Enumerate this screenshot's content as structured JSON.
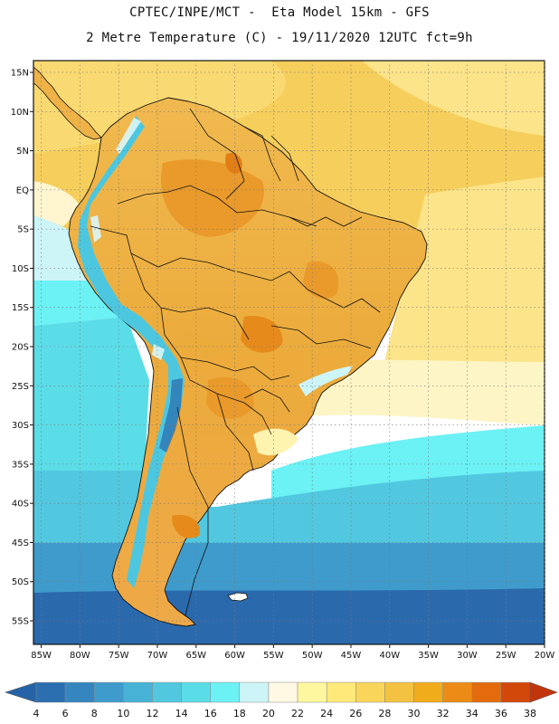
{
  "header": {
    "line1": "CPTEC/INPE/MCT -  Eta Model 15km - GFS",
    "line2": "2 Metre Temperature (C) - 19/11/2020 12UTC fct=9h"
  },
  "map": {
    "lat_labels": [
      "15N",
      "10N",
      "5N",
      "EQ",
      "5S",
      "10S",
      "15S",
      "20S",
      "25S",
      "30S",
      "35S",
      "40S",
      "45S",
      "50S",
      "55S"
    ],
    "lat_values": [
      15,
      10,
      5,
      0,
      -5,
      -10,
      -15,
      -20,
      -25,
      -30,
      -35,
      -40,
      -45,
      -50,
      -55
    ],
    "lon_labels": [
      "85W",
      "80W",
      "75W",
      "70W",
      "65W",
      "60W",
      "55W",
      "50W",
      "45W",
      "40W",
      "35W",
      "30W",
      "25W",
      "20W"
    ],
    "lon_values": [
      -85,
      -80,
      -75,
      -70,
      -65,
      -60,
      -55,
      -50,
      -45,
      -40,
      -35,
      -30,
      -25,
      -20
    ],
    "lat_range": [
      -58,
      16.5
    ],
    "lon_range": [
      -86,
      -20
    ]
  },
  "colorbar": {
    "labels": [
      "4",
      "6",
      "8",
      "10",
      "12",
      "14",
      "16",
      "18",
      "20",
      "22",
      "24",
      "26",
      "28",
      "30",
      "32",
      "34",
      "36",
      "38"
    ],
    "colors": [
      "#2b6fb0",
      "#3586bf",
      "#3f9bcc",
      "#47b2d6",
      "#52c8e0",
      "#5bdde8",
      "#6cf1f4",
      "#cdf5f8",
      "#fff8e3",
      "#fff7a0",
      "#ffe97a",
      "#f9d65a",
      "#f3c240",
      "#f1ac1c",
      "#ec8c16",
      "#e36b0c",
      "#d2470a"
    ],
    "under_color": "#2563a6",
    "over_color": "#c2350c"
  },
  "colors": {
    "deep_ocean": "#2b69ad",
    "cold_ocean": "#3e9bcd",
    "cool_ocean": "#52c8e0",
    "mild_ocean": "#62dce9",
    "warm_sea": "#fff7c2",
    "hot_sea": "#fbe58a",
    "land_hot": "#ecae3e",
    "land_warm": "#f3c765",
    "andes_cold": "#4dc7e0",
    "coastline": "#111111"
  }
}
